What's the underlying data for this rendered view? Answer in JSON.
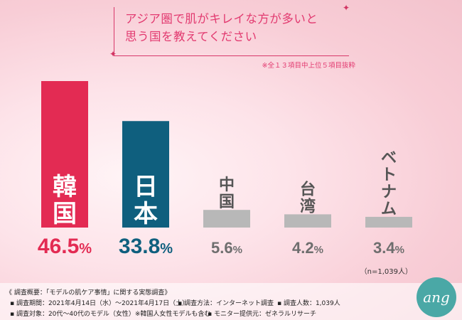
{
  "title_lines": [
    "アジア圏で肌がキレイな方が多いと",
    "思う国を教えてください"
  ],
  "note": "※全１３項目中上位５項目抜粋",
  "sample": "（n=1,039人）",
  "colors": {
    "korea": "#e32b53",
    "japan": "#0f5f7e",
    "others": "#b8b8b8",
    "accent": "#e23a70"
  },
  "chart_data": {
    "type": "bar",
    "categories": [
      "韓国",
      "日本",
      "中国",
      "台湾",
      "ベトナム"
    ],
    "values": [
      46.5,
      33.8,
      5.6,
      4.2,
      3.4
    ],
    "value_labels": [
      {
        "num": "46.5",
        "unit": "%"
      },
      {
        "num": "33.8",
        "unit": "%"
      },
      {
        "num": "5.6",
        "unit": "%"
      },
      {
        "num": "4.2",
        "unit": "%"
      },
      {
        "num": "3.4",
        "unit": "%"
      }
    ],
    "ylim": [
      0,
      46.5
    ],
    "title": "アジア圏で肌がキレイな方が多いと思う国を教えてください",
    "xlabel": "",
    "ylabel": "",
    "grid": false
  },
  "footer": {
    "heading": "《 調査概要：「モデルの肌ケア事情」に関する実態調査》",
    "period": "▪ 調査期間：2021年4月14日（水）〜2021年4月17日（土）",
    "method": "▪ 調査方法：インターネット調査",
    "count": "▪ 調査人数：1,039人",
    "target": "▪ 調査対象：20代〜40代のモデル（女性）※韓国人女性モデルも含む",
    "provider": "▪ モニター提供元：ゼネラルリサーチ"
  },
  "logo": {
    "text": "ang",
    "icon": "brand-logo-icon"
  }
}
